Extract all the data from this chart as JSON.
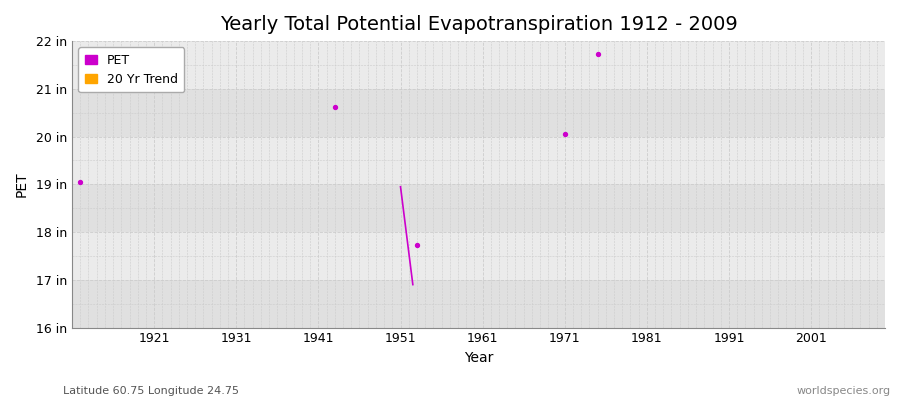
{
  "title": "Yearly Total Potential Evapotranspiration 1912 - 2009",
  "xlabel": "Year",
  "ylabel": "PET",
  "subtitle_lat_lon": "Latitude 60.75 Longitude 24.75",
  "watermark": "worldspecies.org",
  "xlim": [
    1911,
    2010
  ],
  "ylim": [
    16,
    22
  ],
  "yticks": [
    16,
    17,
    18,
    19,
    20,
    21,
    22
  ],
  "ytick_labels": [
    "16 in",
    "17 in",
    "18 in",
    "19 in",
    "20 in",
    "21 in",
    "22 in"
  ],
  "xticks": [
    1921,
    1931,
    1941,
    1951,
    1961,
    1971,
    1981,
    1991,
    2001
  ],
  "pet_color": "#CC00CC",
  "trend_color": "#FFA500",
  "fig_background_color": "#FFFFFF",
  "plot_background_color": "#EBEBEB",
  "band_dark_color": "#E0E0E0",
  "band_light_color": "#EBEBEB",
  "pet_points_x": [
    1912,
    1943,
    1953,
    1971,
    1975
  ],
  "pet_points_y": [
    19.05,
    20.62,
    17.73,
    20.05,
    21.72
  ],
  "trend_line_x": [
    1951.0,
    1952.5
  ],
  "trend_line_y": [
    18.95,
    16.9
  ],
  "title_fontsize": 14,
  "axis_fontsize": 10,
  "tick_fontsize": 9,
  "legend_fontsize": 9,
  "figsize": [
    9.0,
    4.0
  ],
  "dpi": 100
}
